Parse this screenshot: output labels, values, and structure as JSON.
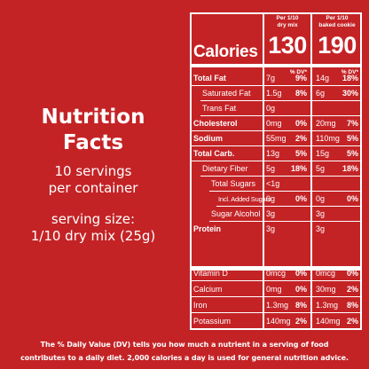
{
  "left": {
    "title_line1": "Nutrition",
    "title_line2": "Facts",
    "servings_line1": "10 servings",
    "servings_line2": "per container",
    "serving_size_line1": "serving size:",
    "serving_size_line2": "1/10 dry mix (25g)"
  },
  "label": {
    "col1_header_line1": "Per 1/10",
    "col1_header_line2": "dry mix",
    "col2_header_line1": "Per 1/10",
    "col2_header_line2": "baked cookie",
    "calories_label": "Calories",
    "calories_dry": "130",
    "calories_baked": "190",
    "dv_header_1": "% DV*",
    "dv_header_2": "% DV*",
    "rows": [
      {
        "name": "Total Fat",
        "amt1": "7g",
        "pct1": "9%",
        "amt2": "14g",
        "pct2": "18%"
      },
      {
        "name": "Saturated Fat",
        "amt1": "1.5g",
        "pct1": "8%",
        "amt2": "6g",
        "pct2": "30%"
      },
      {
        "name": "Trans Fat",
        "amt1": "0g",
        "pct1": "",
        "amt2": "",
        "pct2": ""
      },
      {
        "name": "Cholesterol",
        "amt1": "0mg",
        "pct1": "0%",
        "amt2": "20mg",
        "pct2": "7%"
      },
      {
        "name": "Sodium",
        "amt1": "55mg",
        "pct1": "2%",
        "amt2": "110mg",
        "pct2": "5%"
      },
      {
        "name": "Total Carb.",
        "amt1": "13g",
        "pct1": "5%",
        "amt2": "15g",
        "pct2": "5%"
      },
      {
        "name": "Dietary Fiber",
        "amt1": "5g",
        "pct1": "18%",
        "amt2": "5g",
        "pct2": "18%"
      },
      {
        "name": "Total Sugars",
        "amt1": "<1g",
        "pct1": "",
        "amt2": "",
        "pct2": ""
      },
      {
        "name": "Incl. Added Sugars",
        "amt1": "0g",
        "pct1": "0%",
        "amt2": "0g",
        "pct2": "0%"
      },
      {
        "name": "Sugar Alcohol",
        "amt1": "3g",
        "pct1": "",
        "amt2": "3g",
        "pct2": ""
      },
      {
        "name": "Protein",
        "amt1": "3g",
        "pct1": "",
        "amt2": "3g",
        "pct2": ""
      },
      {
        "name": "Vitamin D",
        "amt1": "0mcg",
        "pct1": "0%",
        "amt2": "0mcg",
        "pct2": "0%"
      },
      {
        "name": "Calcium",
        "amt1": "0mg",
        "pct1": "0%",
        "amt2": "30mg",
        "pct2": "2%"
      },
      {
        "name": "Iron",
        "amt1": "1.3mg",
        "pct1": "8%",
        "amt2": "1.3mg",
        "pct2": "8%"
      },
      {
        "name": "Potassium",
        "amt1": "140mg",
        "pct1": "2%",
        "amt2": "140mg",
        "pct2": "2%"
      }
    ]
  },
  "footer": {
    "line1": "The % Daily Value (DV) tells you how much a nutrient in a serving of food",
    "line2": "contributes to a daily diet. 2,000 calories a day is used for general nutrition advice."
  },
  "colors": {
    "background": "#c42326",
    "foreground": "#ffffff"
  }
}
